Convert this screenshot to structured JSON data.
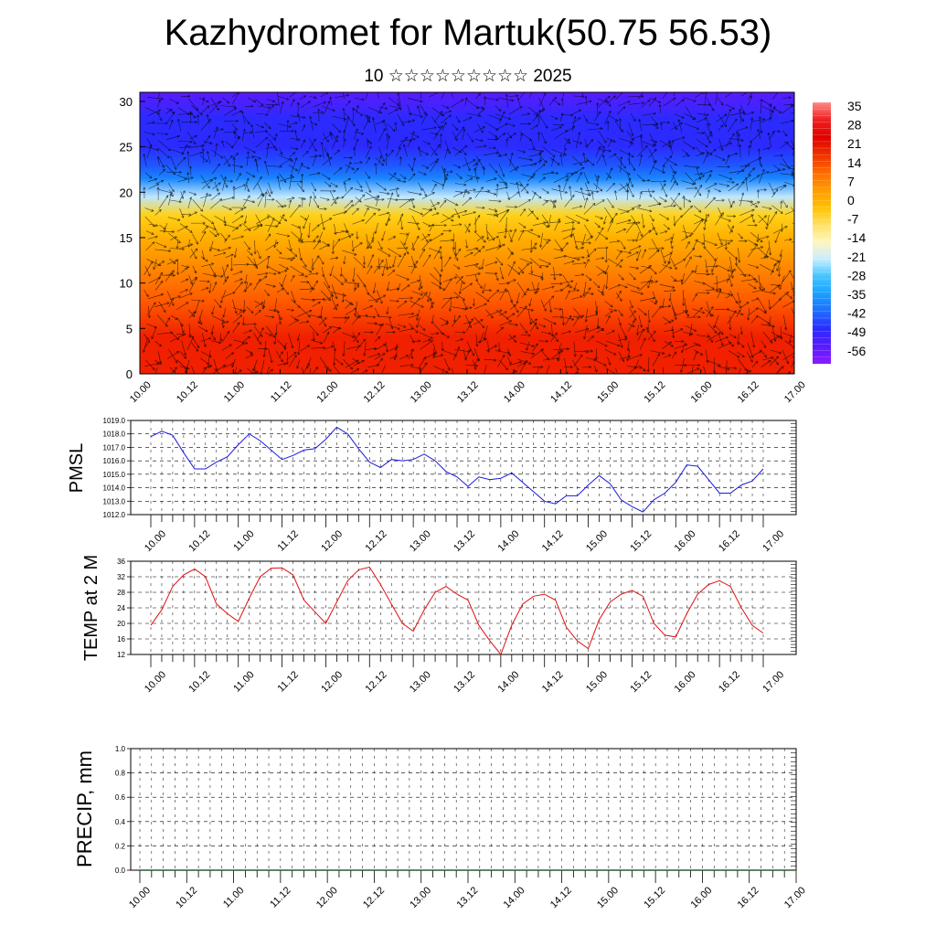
{
  "header": {
    "title": "Kazhydromet for Martuk(50.75 56.53)",
    "subtitle": "10 ☆☆☆☆☆☆☆☆☆ 2025"
  },
  "time_labels": [
    "10.00",
    "10.12",
    "11.00",
    "11.12",
    "12.00",
    "12.12",
    "13.00",
    "13.12",
    "14.00",
    "14.12",
    "15.00",
    "15.12",
    "16.00",
    "16.12",
    "17.00"
  ],
  "colors": {
    "pmsl_line": "#1a1adc",
    "temp_line": "#e01010",
    "precip_line": "#2f5f2f",
    "grid": "#000000"
  },
  "chart_data": [
    {
      "type": "heatmap",
      "name": "vertical-profile",
      "x_ticks": [
        "10.00",
        "10.12",
        "11.00",
        "11.12",
        "12.00",
        "12.12",
        "13.00",
        "13.12",
        "14.00",
        "14.12",
        "15.00",
        "15.12",
        "16.00",
        "16.12",
        "17.00"
      ],
      "y_ticks": [
        "0",
        "5",
        "10",
        "15",
        "20",
        "25",
        "30"
      ],
      "ylim": [
        0,
        31
      ],
      "colorbar_labels": [
        "35",
        "28",
        "21",
        "14",
        "7",
        "0",
        "-7",
        "-14",
        "-21",
        "-28",
        "-35",
        "-42",
        "-49",
        "-56"
      ],
      "colormap": [
        "#8c1aff",
        "#5a1bff",
        "#2b2bff",
        "#1f55ff",
        "#1a86ff",
        "#19b7ff",
        "#bfe7ff",
        "#fff3a0",
        "#ffd21a",
        "#ffb000",
        "#ff8c00",
        "#ff5a00",
        "#f02000",
        "#e00000",
        "#ff6a6a"
      ],
      "wind_arrows": true
    },
    {
      "type": "line",
      "name": "pmsl",
      "ylabel": "PMSL",
      "ylim": [
        1012.0,
        1019.0
      ],
      "y_ticks": [
        "1019.0",
        "1018.0",
        "1017.0",
        "1016.0",
        "1015.0",
        "1014.0",
        "1013.0",
        "1012.0"
      ],
      "x_ticks": [
        "10.00",
        "10.12",
        "11.00",
        "11.12",
        "12.00",
        "12.12",
        "13.00",
        "13.12",
        "14.00",
        "14.12",
        "15.00",
        "15.12",
        "16.00",
        "16.12",
        "17.00"
      ],
      "values": [
        1017.8,
        1018.2,
        1017.9,
        1016.6,
        1015.4,
        1015.4,
        1015.9,
        1016.3,
        1017.2,
        1018.0,
        1017.5,
        1016.8,
        1016.1,
        1016.4,
        1016.8,
        1016.9,
        1017.6,
        1018.5,
        1018.0,
        1016.9,
        1015.9,
        1015.5,
        1016.1,
        1016.0,
        1016.1,
        1016.5,
        1016.0,
        1015.2,
        1014.8,
        1014.1,
        1014.8,
        1014.6,
        1014.7,
        1015.1,
        1014.4,
        1013.7,
        1013.0,
        1012.8,
        1013.4,
        1013.4,
        1014.2,
        1014.9,
        1014.3,
        1013.1,
        1012.6,
        1012.2,
        1013.1,
        1013.6,
        1014.4,
        1015.7,
        1015.6,
        1014.6,
        1013.6,
        1013.6,
        1014.2,
        1014.5,
        1015.4
      ]
    },
    {
      "type": "line",
      "name": "temp-2m",
      "ylabel": "TEMP at 2 M",
      "ylim": [
        12,
        36
      ],
      "y_ticks": [
        "36",
        "32",
        "28",
        "24",
        "20",
        "16",
        "12"
      ],
      "x_ticks": [
        "10.00",
        "10.12",
        "11.00",
        "11.12",
        "12.00",
        "12.12",
        "13.00",
        "13.12",
        "14.00",
        "14.12",
        "15.00",
        "15.12",
        "16.00",
        "16.12",
        "17.00"
      ],
      "values": [
        19.5,
        23.5,
        29.5,
        32.5,
        34.0,
        32.0,
        25.0,
        22.5,
        20.5,
        26.5,
        32.0,
        34.2,
        34.3,
        32.5,
        26.0,
        23.0,
        20.0,
        25.5,
        31.0,
        33.8,
        34.5,
        30.0,
        25.0,
        20.0,
        18.0,
        23.5,
        28.0,
        29.5,
        27.5,
        26.0,
        19.5,
        15.5,
        12.0,
        19.5,
        25.0,
        27.0,
        27.5,
        26.0,
        19.0,
        15.5,
        13.5,
        21.0,
        25.5,
        27.5,
        28.5,
        27.0,
        20.0,
        17.0,
        16.5,
        22.5,
        27.5,
        30.0,
        31.0,
        29.5,
        24.0,
        19.5,
        17.5
      ]
    },
    {
      "type": "line",
      "name": "precip",
      "ylabel": "PRECIP, mm",
      "ylim": [
        0.0,
        1.0
      ],
      "y_ticks": [
        "1.0",
        "0.8",
        "0.6",
        "0.4",
        "0.2",
        "0.0"
      ],
      "x_ticks": [
        "10.00",
        "10.12",
        "11.00",
        "11.12",
        "12.00",
        "12.12",
        "13.00",
        "13.12",
        "14.00",
        "14.12",
        "15.00",
        "15.12",
        "16.00",
        "16.12",
        "17.00"
      ],
      "values": [
        0,
        0,
        0,
        0,
        0,
        0,
        0,
        0,
        0,
        0,
        0,
        0,
        0,
        0,
        0,
        0,
        0,
        0,
        0,
        0,
        0,
        0,
        0,
        0,
        0,
        0,
        0,
        0,
        0,
        0,
        0,
        0,
        0,
        0,
        0,
        0,
        0,
        0,
        0,
        0,
        0,
        0,
        0,
        0,
        0,
        0,
        0,
        0,
        0,
        0,
        0,
        0,
        0,
        0,
        0,
        0,
        0
      ]
    }
  ]
}
